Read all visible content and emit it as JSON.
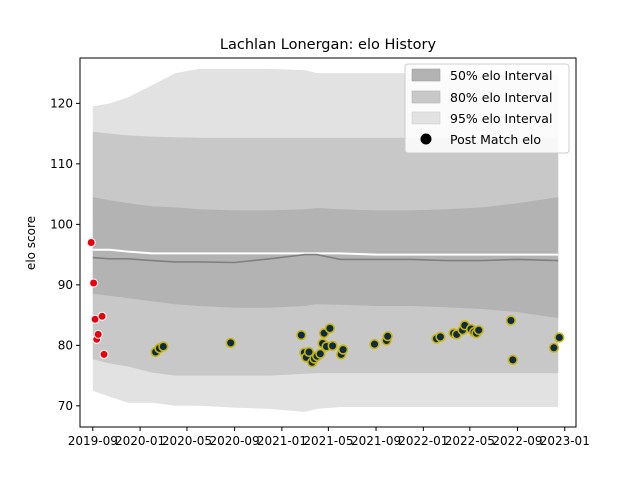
{
  "chart_data": {
    "type": "area",
    "title": "Lachlan Lonergan: elo History",
    "xlabel": "",
    "ylabel": "elo score",
    "xlim": [
      "2019-07-30",
      "2023-01-30"
    ],
    "ylim": [
      66.5,
      127.5
    ],
    "xticks": [
      "2019-09",
      "2020-01",
      "2020-05",
      "2020-09",
      "2021-01",
      "2021-05",
      "2021-09",
      "2022-01",
      "2022-05",
      "2022-09",
      "2023-01"
    ],
    "yticks": [
      70,
      80,
      90,
      100,
      110,
      120
    ],
    "legend_position": "top-right",
    "legend": {
      "band50": "50% elo Interval",
      "band80": "80% elo Interval",
      "band95": "95% elo Interval",
      "points": "Post Match elo"
    },
    "colors": {
      "band50": "#b3b3b3",
      "band80": "#c8c8c8",
      "band95": "#e2e2e2",
      "mean_line": "#ffffff",
      "median_line": "#808080",
      "early_point": "#e8000b",
      "later_point": "#0b2a45",
      "later_point_edge": "#c9b400"
    },
    "band_dates": [
      "2019-09-01",
      "2019-10-15",
      "2019-12-01",
      "2020-02-01",
      "2020-04-01",
      "2020-06-01",
      "2020-09-01",
      "2020-12-01",
      "2021-03-01",
      "2021-04-01",
      "2021-06-01",
      "2021-09-01",
      "2021-12-01",
      "2022-03-01",
      "2022-06-01",
      "2022-09-01",
      "2022-12-15"
    ],
    "series": [
      {
        "key": "band95",
        "upper": [
          119.5,
          120,
          121,
          123,
          125,
          125.7,
          125.7,
          125.7,
          125.5,
          125,
          125,
          125,
          125,
          124.8,
          124.8,
          124.8,
          124.8
        ],
        "lower": [
          72.5,
          71.5,
          70.5,
          70.5,
          70,
          70,
          69.7,
          69.5,
          69,
          69.5,
          69.8,
          69.8,
          69.8,
          69.8,
          69.8,
          69.8,
          69.8
        ]
      },
      {
        "key": "band80",
        "upper": [
          115.3,
          115,
          114.7,
          114.5,
          114.4,
          114.3,
          114.3,
          114.3,
          114.3,
          114.3,
          114.3,
          114.3,
          114.3,
          114.3,
          114.3,
          114.3,
          114.3
        ],
        "lower": [
          77.7,
          77,
          76.5,
          75.5,
          75,
          75,
          75,
          75,
          75.3,
          75.4,
          75.4,
          75.4,
          75.4,
          75.4,
          75.4,
          75.4,
          75.4
        ]
      },
      {
        "key": "band50",
        "upper": [
          104.5,
          104,
          103.5,
          103,
          102.8,
          102.5,
          102.3,
          102.3,
          102.5,
          102.7,
          102.5,
          102.3,
          102.3,
          102.5,
          102.8,
          103.5,
          104.5
        ],
        "lower": [
          88.5,
          88.2,
          87.8,
          87.3,
          86.8,
          86.5,
          86.2,
          86.2,
          86.5,
          86.8,
          86.7,
          86.5,
          86.5,
          86.3,
          86,
          85.5,
          84.5
        ]
      },
      {
        "key": "mean_line",
        "name": "",
        "values": [
          95.8,
          95.8,
          95.5,
          95.2,
          95.2,
          95.2,
          95.2,
          95.2,
          95.2,
          95.2,
          95.2,
          95,
          95,
          95,
          95,
          95,
          95
        ]
      },
      {
        "key": "median_line",
        "name": "",
        "values": [
          94.5,
          94.3,
          94.3,
          94,
          93.8,
          93.8,
          93.7,
          94.3,
          95,
          95,
          94.2,
          94.2,
          94.2,
          94,
          94,
          94.2,
          94
        ]
      }
    ],
    "points": [
      {
        "x": "2019-08-28",
        "y": 97.0,
        "group": "early"
      },
      {
        "x": "2019-09-03",
        "y": 90.3,
        "group": "early"
      },
      {
        "x": "2019-09-07",
        "y": 84.3,
        "group": "early"
      },
      {
        "x": "2019-09-11",
        "y": 81.0,
        "group": "early"
      },
      {
        "x": "2019-09-15",
        "y": 81.8,
        "group": "early"
      },
      {
        "x": "2019-09-25",
        "y": 84.8,
        "group": "early"
      },
      {
        "x": "2019-09-30",
        "y": 78.5,
        "group": "early"
      },
      {
        "x": "2020-02-10",
        "y": 78.9,
        "group": "later"
      },
      {
        "x": "2020-02-20",
        "y": 79.5,
        "group": "later"
      },
      {
        "x": "2020-03-01",
        "y": 79.8,
        "group": "later"
      },
      {
        "x": "2020-08-22",
        "y": 80.4,
        "group": "later"
      },
      {
        "x": "2021-02-20",
        "y": 81.7,
        "group": "later"
      },
      {
        "x": "2021-02-28",
        "y": 78.8,
        "group": "later"
      },
      {
        "x": "2021-03-05",
        "y": 78.0,
        "group": "later"
      },
      {
        "x": "2021-03-12",
        "y": 78.9,
        "group": "later"
      },
      {
        "x": "2021-03-20",
        "y": 77.2,
        "group": "later"
      },
      {
        "x": "2021-03-26",
        "y": 77.8,
        "group": "later"
      },
      {
        "x": "2021-04-02",
        "y": 78.2,
        "group": "later"
      },
      {
        "x": "2021-04-10",
        "y": 78.6,
        "group": "later"
      },
      {
        "x": "2021-04-16",
        "y": 80.3,
        "group": "later"
      },
      {
        "x": "2021-04-20",
        "y": 82.0,
        "group": "later"
      },
      {
        "x": "2021-04-26",
        "y": 79.8,
        "group": "later"
      },
      {
        "x": "2021-05-05",
        "y": 82.8,
        "group": "later"
      },
      {
        "x": "2021-05-12",
        "y": 79.9,
        "group": "later"
      },
      {
        "x": "2021-06-03",
        "y": 78.5,
        "group": "later"
      },
      {
        "x": "2021-06-08",
        "y": 79.3,
        "group": "later"
      },
      {
        "x": "2021-08-28",
        "y": 80.2,
        "group": "later"
      },
      {
        "x": "2021-09-28",
        "y": 80.8,
        "group": "later"
      },
      {
        "x": "2021-10-01",
        "y": 81.5,
        "group": "later"
      },
      {
        "x": "2022-02-04",
        "y": 81.1,
        "group": "later"
      },
      {
        "x": "2022-02-14",
        "y": 81.4,
        "group": "later"
      },
      {
        "x": "2022-03-20",
        "y": 82.0,
        "group": "later"
      },
      {
        "x": "2022-03-28",
        "y": 81.8,
        "group": "later"
      },
      {
        "x": "2022-04-12",
        "y": 82.5,
        "group": "later"
      },
      {
        "x": "2022-04-18",
        "y": 83.3,
        "group": "later"
      },
      {
        "x": "2022-05-04",
        "y": 82.7,
        "group": "later"
      },
      {
        "x": "2022-05-12",
        "y": 82.2,
        "group": "later"
      },
      {
        "x": "2022-05-18",
        "y": 82.0,
        "group": "later"
      },
      {
        "x": "2022-05-24",
        "y": 82.5,
        "group": "later"
      },
      {
        "x": "2022-08-15",
        "y": 84.1,
        "group": "later"
      },
      {
        "x": "2022-08-20",
        "y": 77.6,
        "group": "later"
      },
      {
        "x": "2022-12-04",
        "y": 79.6,
        "group": "later"
      },
      {
        "x": "2022-12-18",
        "y": 81.3,
        "group": "later"
      }
    ]
  }
}
